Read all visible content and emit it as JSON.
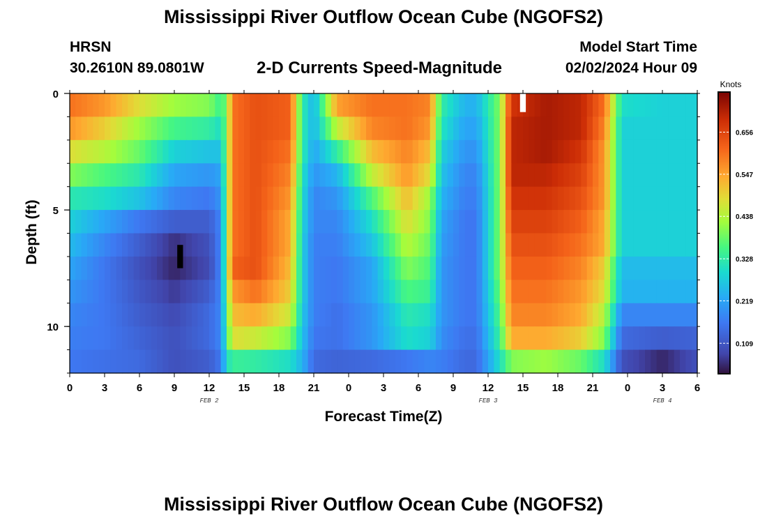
{
  "title": "Mississippi River Outflow Ocean Cube (NGOFS2)",
  "station": {
    "name": "HRSN",
    "coords": "30.2610N  89.0801W"
  },
  "model_start": {
    "label": "Model Start Time",
    "value": "02/02/2024 Hour 09"
  },
  "chart_data": {
    "type": "heatmap",
    "title": "2-D Currents Speed-Magnitude",
    "xlabel": "Forecast Time(Z)",
    "ylabel": "Depth (ft)",
    "x_tick_labels": [
      "0",
      "3",
      "6",
      "9",
      "12",
      "15",
      "18",
      "21",
      "0",
      "3",
      "6",
      "9",
      "12",
      "15",
      "18",
      "21",
      "0",
      "3",
      "6"
    ],
    "x_range_hours": [
      0,
      54
    ],
    "date_labels": [
      {
        "text": "FEB 2",
        "hour": 12
      },
      {
        "text": "FEB 3",
        "hour": 36
      },
      {
        "text": "FEB 4",
        "hour": 51
      }
    ],
    "y_ticks": [
      0,
      5,
      10
    ],
    "y_range_ft": [
      0,
      12
    ],
    "colorbar": {
      "unit": "Knots",
      "ticks": [
        "0.109",
        "0.219",
        "0.328",
        "0.438",
        "0.547",
        "0.656"
      ],
      "tick_values": [
        0.109,
        0.219,
        0.328,
        0.438,
        0.547,
        0.656
      ],
      "range": [
        0.03,
        0.76
      ]
    },
    "depth_levels_ft": [
      0.5,
      1.5,
      2.5,
      3.5,
      4.5,
      5.5,
      6.5,
      7.5,
      8.5,
      9.5,
      10.5,
      11.5
    ],
    "time_keys_hours": [
      0,
      3,
      6,
      9,
      12,
      13,
      13.5,
      14,
      16,
      19,
      20,
      21,
      23,
      26,
      29,
      31,
      32,
      34,
      35,
      37,
      38,
      41,
      44,
      46,
      47.5,
      51,
      54
    ],
    "speed_knots": [
      [
        0.6,
        0.56,
        0.48,
        0.42,
        0.4,
        0.34,
        0.4,
        0.6,
        0.64,
        0.62,
        0.33,
        0.24,
        0.55,
        0.6,
        0.6,
        0.58,
        0.33,
        0.24,
        0.24,
        0.4,
        0.68,
        0.72,
        0.7,
        0.6,
        0.3,
        0.28,
        0.28
      ],
      [
        0.56,
        0.5,
        0.42,
        0.35,
        0.33,
        0.3,
        0.4,
        0.6,
        0.64,
        0.62,
        0.33,
        0.24,
        0.45,
        0.58,
        0.6,
        0.56,
        0.31,
        0.22,
        0.22,
        0.4,
        0.7,
        0.72,
        0.7,
        0.58,
        0.28,
        0.28,
        0.28
      ],
      [
        0.48,
        0.44,
        0.38,
        0.28,
        0.26,
        0.26,
        0.4,
        0.6,
        0.64,
        0.6,
        0.33,
        0.22,
        0.33,
        0.52,
        0.58,
        0.52,
        0.28,
        0.2,
        0.2,
        0.4,
        0.7,
        0.72,
        0.68,
        0.56,
        0.28,
        0.28,
        0.28
      ],
      [
        0.4,
        0.36,
        0.32,
        0.22,
        0.2,
        0.22,
        0.4,
        0.6,
        0.64,
        0.58,
        0.31,
        0.2,
        0.24,
        0.45,
        0.56,
        0.48,
        0.26,
        0.18,
        0.18,
        0.4,
        0.7,
        0.7,
        0.66,
        0.56,
        0.28,
        0.28,
        0.28
      ],
      [
        0.32,
        0.3,
        0.26,
        0.18,
        0.16,
        0.2,
        0.4,
        0.6,
        0.64,
        0.56,
        0.3,
        0.18,
        0.2,
        0.36,
        0.52,
        0.42,
        0.24,
        0.17,
        0.17,
        0.4,
        0.68,
        0.68,
        0.64,
        0.56,
        0.28,
        0.28,
        0.28
      ],
      [
        0.28,
        0.22,
        0.16,
        0.12,
        0.12,
        0.18,
        0.4,
        0.6,
        0.64,
        0.54,
        0.29,
        0.18,
        0.18,
        0.3,
        0.48,
        0.4,
        0.22,
        0.16,
        0.16,
        0.4,
        0.66,
        0.66,
        0.62,
        0.54,
        0.28,
        0.28,
        0.28
      ],
      [
        0.25,
        0.18,
        0.12,
        0.06,
        0.1,
        0.18,
        0.4,
        0.6,
        0.64,
        0.54,
        0.28,
        0.17,
        0.17,
        0.26,
        0.44,
        0.38,
        0.21,
        0.16,
        0.16,
        0.4,
        0.64,
        0.64,
        0.6,
        0.54,
        0.28,
        0.28,
        0.28
      ],
      [
        0.22,
        0.16,
        0.1,
        0.05,
        0.09,
        0.18,
        0.4,
        0.62,
        0.64,
        0.52,
        0.28,
        0.17,
        0.16,
        0.22,
        0.4,
        0.36,
        0.2,
        0.16,
        0.16,
        0.4,
        0.62,
        0.62,
        0.58,
        0.5,
        0.25,
        0.25,
        0.25
      ],
      [
        0.2,
        0.16,
        0.11,
        0.07,
        0.12,
        0.18,
        0.38,
        0.56,
        0.6,
        0.5,
        0.28,
        0.17,
        0.16,
        0.22,
        0.36,
        0.34,
        0.2,
        0.16,
        0.16,
        0.38,
        0.6,
        0.6,
        0.56,
        0.48,
        0.24,
        0.24,
        0.24
      ],
      [
        0.18,
        0.16,
        0.12,
        0.09,
        0.14,
        0.18,
        0.36,
        0.52,
        0.54,
        0.46,
        0.27,
        0.17,
        0.15,
        0.2,
        0.32,
        0.3,
        0.2,
        0.16,
        0.16,
        0.36,
        0.58,
        0.58,
        0.54,
        0.44,
        0.18,
        0.18,
        0.18
      ],
      [
        0.17,
        0.16,
        0.13,
        0.1,
        0.14,
        0.18,
        0.34,
        0.48,
        0.46,
        0.4,
        0.26,
        0.16,
        0.15,
        0.2,
        0.3,
        0.28,
        0.19,
        0.15,
        0.15,
        0.34,
        0.54,
        0.54,
        0.5,
        0.4,
        0.14,
        0.12,
        0.13
      ],
      [
        0.16,
        0.15,
        0.14,
        0.1,
        0.12,
        0.16,
        0.3,
        0.34,
        0.33,
        0.3,
        0.24,
        0.14,
        0.13,
        0.14,
        0.16,
        0.18,
        0.17,
        0.14,
        0.14,
        0.3,
        0.4,
        0.42,
        0.38,
        0.3,
        0.1,
        0.05,
        0.1
      ]
    ],
    "missing_cells": [
      {
        "hour": 9.5,
        "depth_ft": 7.0,
        "color": "#000000"
      },
      {
        "hour": 39.0,
        "depth_ft": 0.3,
        "color": "#ffffff"
      }
    ]
  }
}
